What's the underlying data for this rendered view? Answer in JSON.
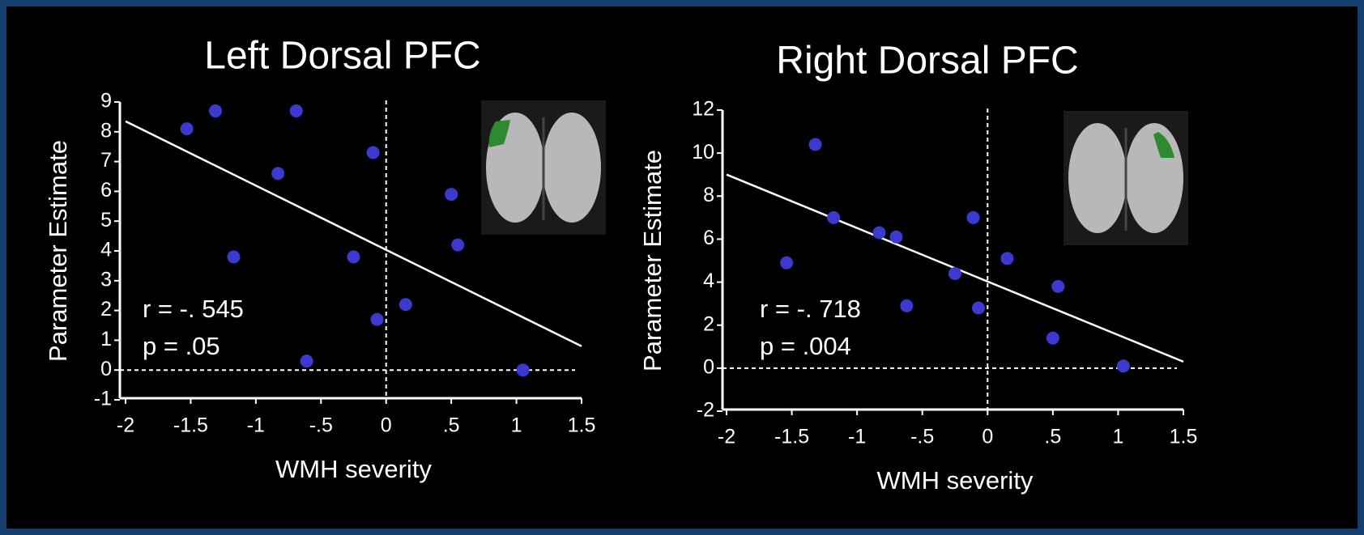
{
  "chart_data": [
    {
      "type": "scatter",
      "title": "Left Dorsal PFC",
      "x_label": "WMH severity",
      "y_label": "Parameter Estimate",
      "annotations": [
        "r = -. 545",
        "p = .05"
      ],
      "x": [
        -1.53,
        -1.31,
        -0.69,
        -0.83,
        -1.17,
        -0.1,
        -0.25,
        0.5,
        0.55,
        0.15,
        -0.07,
        -0.61,
        1.05
      ],
      "values": [
        8.1,
        8.7,
        8.7,
        6.6,
        3.8,
        7.3,
        3.8,
        5.9,
        4.2,
        2.2,
        1.7,
        0.3,
        0
      ],
      "color": "#3a3ad0",
      "fit": {
        "x": [
          -2,
          1.5
        ],
        "values": [
          8.35,
          0.8
        ],
        "color": "#ffffff"
      },
      "hline": 0,
      "vline": 0,
      "xlim": [
        -2,
        1.5
      ],
      "xticks": [
        -2,
        {
          "value": -1.5,
          "label": "-1.5"
        },
        -1,
        {
          "value": -0.5,
          "label": "-.5"
        },
        0,
        {
          "value": 0.5,
          "label": ".5"
        },
        1,
        {
          "value": 1.5,
          "label": "1.5"
        }
      ],
      "ylim": [
        -1,
        9
      ],
      "yticks": [
        -1,
        0,
        1,
        2,
        3,
        4,
        5,
        6,
        7,
        8,
        9
      ]
    },
    {
      "type": "scatter",
      "title": "Right Dorsal PFC",
      "x_label": "WMH severity",
      "y_label": "Parameter Estimate",
      "annotations": [
        "r = -. 718",
        "p = .004"
      ],
      "x": [
        -1.54,
        -1.32,
        -1.18,
        -0.83,
        -0.7,
        -0.62,
        -0.25,
        -0.11,
        -0.07,
        0.15,
        0.54,
        0.5,
        1.04
      ],
      "values": [
        4.9,
        10.4,
        7.0,
        6.3,
        6.1,
        2.9,
        4.4,
        7.0,
        2.8,
        5.1,
        3.8,
        1.4,
        0.1
      ],
      "color": "#3a3ad0",
      "fit": {
        "x": [
          -2,
          1.5
        ],
        "values": [
          9.0,
          0.3
        ],
        "color": "#ffffff"
      },
      "hline": 0,
      "vline": 0,
      "xlim": [
        -2,
        1.5
      ],
      "xticks": [
        -2,
        {
          "value": -1.5,
          "label": "-1.5"
        },
        -1,
        {
          "value": -0.5,
          "label": "-.5"
        },
        0,
        {
          "value": 0.5,
          "label": ".5"
        },
        1,
        {
          "value": 1.5,
          "label": "1.5"
        }
      ],
      "ylim": [
        -2,
        12
      ],
      "yticks": [
        -2,
        0,
        2,
        4,
        6,
        8,
        10,
        12
      ]
    }
  ]
}
